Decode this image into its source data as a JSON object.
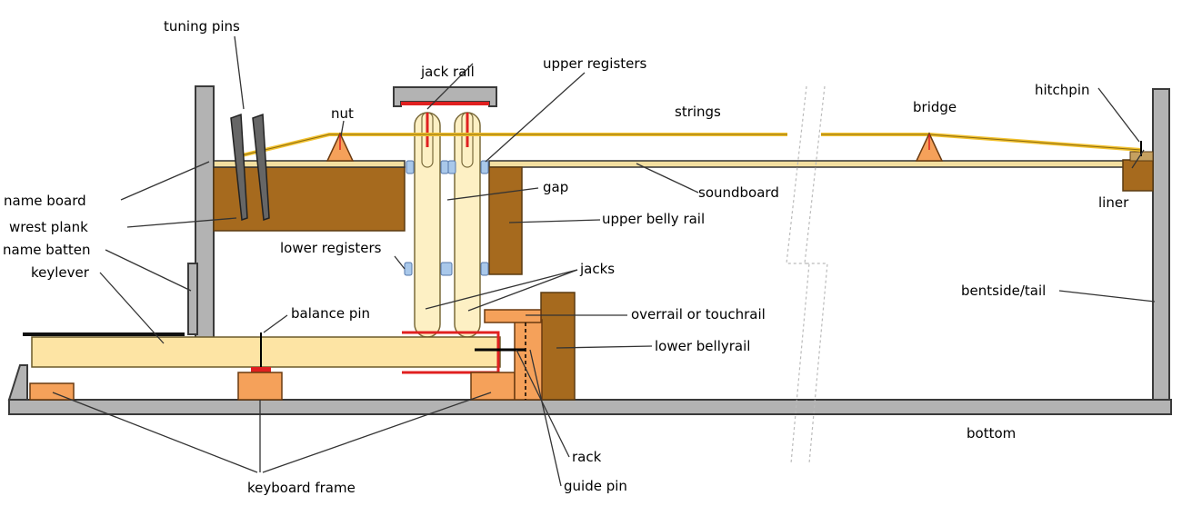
{
  "labels": {
    "tuning_pins": "tuning pins",
    "jack_rail": "jack rail",
    "upper_registers": "upper registers",
    "strings": "strings",
    "bridge": "bridge",
    "hitchpin": "hitchpin",
    "nut": "nut",
    "name_board": "name board",
    "wrest_plank": "wrest plank",
    "name_batten": "name batten",
    "keylever": "keylever",
    "gap": "gap",
    "soundboard": "soundboard",
    "liner": "liner",
    "upper_belly_rail": "upper belly rail",
    "lower_registers": "lower registers",
    "jacks": "jacks",
    "bentside_tail": "bentside/tail",
    "balance_pin": "balance pin",
    "overrail_or_touchrail": "overrail or touchrail",
    "lower_bellyrail": "lower bellyrail",
    "bottom": "bottom",
    "rack": "rack",
    "guide_pin": "guide pin",
    "keyboard_frame": "keyboard frame"
  },
  "colors": {
    "wood": "#a66a1e",
    "frame_gray": "#b3b3b3",
    "string_gold": "#f2c12e",
    "cream": "#fde4a4",
    "orange": "#f5a15a",
    "red_felt": "#e02020",
    "register_blue": "#a9c8ea"
  }
}
